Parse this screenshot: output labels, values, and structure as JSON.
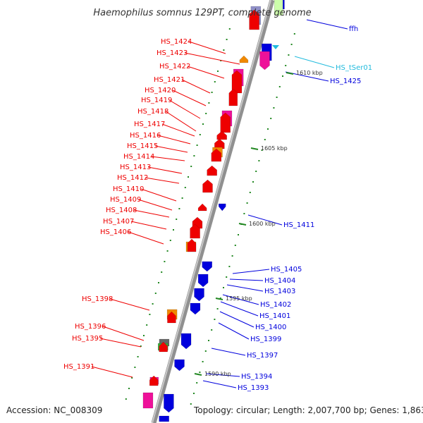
{
  "title": "Haemophilus somnus 129PT, complete genome",
  "accession": "Accession: NC_008309",
  "topology": "Topology: circular; Length: 2,007,700 bp; Genes: 1,863",
  "colors": {
    "forward": "#ee0000",
    "reverse": "#0000dd",
    "trna": "#22bbdd",
    "orange": "#f08800",
    "pink": "#ee1199",
    "gray": "#666666",
    "tick": "#228822"
  },
  "ticks": [
    {
      "label": "1610 kbp",
      "pos": 1610
    },
    {
      "label": "1605 kbp",
      "pos": 1605
    },
    {
      "label": "1600 kbp",
      "pos": 1600
    },
    {
      "label": "1595 kbp",
      "pos": 1595
    },
    {
      "label": "1590 kbp",
      "pos": 1590
    }
  ],
  "genes_left": [
    {
      "name": "HS_1424"
    },
    {
      "name": "HS_1423"
    },
    {
      "name": "HS_1422"
    },
    {
      "name": "HS_1421"
    },
    {
      "name": "HS_1420"
    },
    {
      "name": "HS_1419"
    },
    {
      "name": "HS_1418"
    },
    {
      "name": "HS_1417"
    },
    {
      "name": "HS_1416"
    },
    {
      "name": "HS_1415"
    },
    {
      "name": "HS_1414"
    },
    {
      "name": "HS_1413"
    },
    {
      "name": "HS_1412"
    },
    {
      "name": "HS_1410"
    },
    {
      "name": "HS_1409"
    },
    {
      "name": "HS_1408"
    },
    {
      "name": "HS_1407"
    },
    {
      "name": "HS_1406"
    },
    {
      "name": "HS_1398"
    },
    {
      "name": "HS_1396"
    },
    {
      "name": "HS_1395"
    },
    {
      "name": "HS_1391"
    }
  ],
  "genes_right": [
    {
      "name": "ffh",
      "kind": "reverse"
    },
    {
      "name": "HS_tSer01",
      "kind": "trna"
    },
    {
      "name": "HS_1425",
      "kind": "reverse"
    },
    {
      "name": "HS_1411",
      "kind": "reverse"
    },
    {
      "name": "HS_1405",
      "kind": "reverse"
    },
    {
      "name": "HS_1404",
      "kind": "reverse"
    },
    {
      "name": "HS_1403",
      "kind": "reverse"
    },
    {
      "name": "HS_1402",
      "kind": "reverse"
    },
    {
      "name": "HS_1401",
      "kind": "reverse"
    },
    {
      "name": "HS_1400",
      "kind": "reverse"
    },
    {
      "name": "HS_1399",
      "kind": "reverse"
    },
    {
      "name": "HS_1397",
      "kind": "reverse"
    },
    {
      "name": "HS_1394",
      "kind": "reverse"
    },
    {
      "name": "HS_1393",
      "kind": "reverse"
    }
  ]
}
